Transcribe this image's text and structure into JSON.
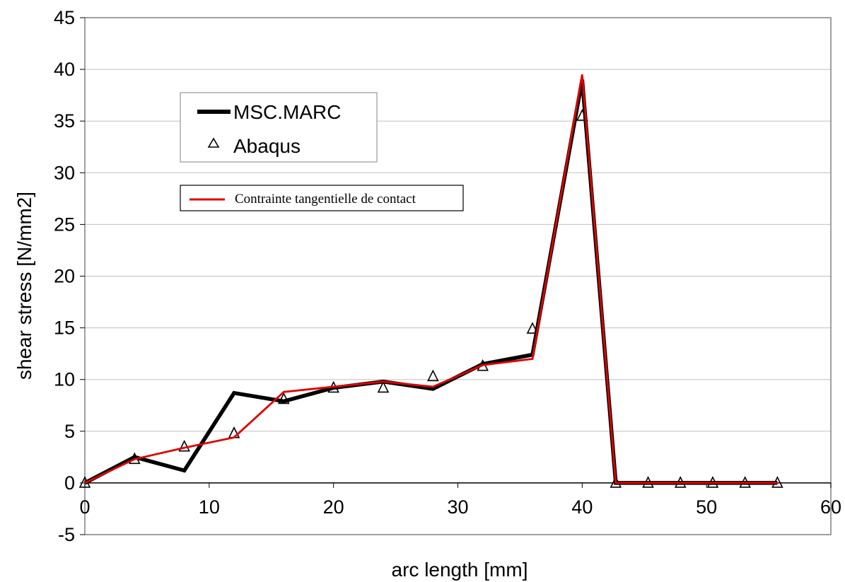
{
  "chart_data": {
    "type": "line",
    "title": "",
    "xlabel": "arc length [mm]",
    "ylabel": "shear stress [N/mm2]",
    "xlim": [
      0,
      60
    ],
    "ylim": [
      -5,
      45
    ],
    "xticks": [
      0,
      10,
      20,
      30,
      40,
      50,
      60
    ],
    "yticks": [
      -5,
      0,
      5,
      10,
      15,
      20,
      25,
      30,
      35,
      40,
      45
    ],
    "grid": "horizontal",
    "colors": {
      "msc": "#000000",
      "abaqus": "#000000",
      "contact": "#e00000"
    },
    "series": [
      {
        "name": "MSC.MARC",
        "style": "line",
        "x": [
          0,
          4,
          8,
          12,
          16,
          20,
          24,
          28,
          32,
          36,
          40,
          42.7,
          45.3,
          47.9,
          50.5,
          53.1,
          55.7
        ],
        "y": [
          0,
          2.5,
          1.2,
          8.7,
          7.9,
          9.2,
          9.8,
          9.1,
          11.5,
          12.4,
          39,
          0,
          0,
          0,
          0,
          0,
          0
        ]
      },
      {
        "name": "Abaqus",
        "style": "marker",
        "x": [
          0,
          4,
          8,
          12,
          16,
          20,
          24,
          28,
          32,
          36,
          40,
          42.7,
          45.3,
          47.9,
          50.5,
          53.1,
          55.7
        ],
        "y": [
          0,
          2.3,
          3.5,
          4.8,
          8.1,
          9.2,
          9.2,
          10.3,
          11.3,
          14.9,
          35.5,
          0,
          0,
          0,
          0,
          0,
          0
        ]
      },
      {
        "name": "Contrainte tangentielle de contact",
        "style": "line",
        "x": [
          0,
          4,
          8,
          12,
          16,
          20,
          24,
          28,
          32,
          36,
          40,
          42.7,
          45.3,
          47.9,
          50.5,
          53.1,
          55.7
        ],
        "y": [
          0,
          2.3,
          3.4,
          4.4,
          8.8,
          9.3,
          9.8,
          9.3,
          11.4,
          12.0,
          39.5,
          0,
          0,
          0,
          0,
          0,
          0
        ]
      }
    ]
  }
}
